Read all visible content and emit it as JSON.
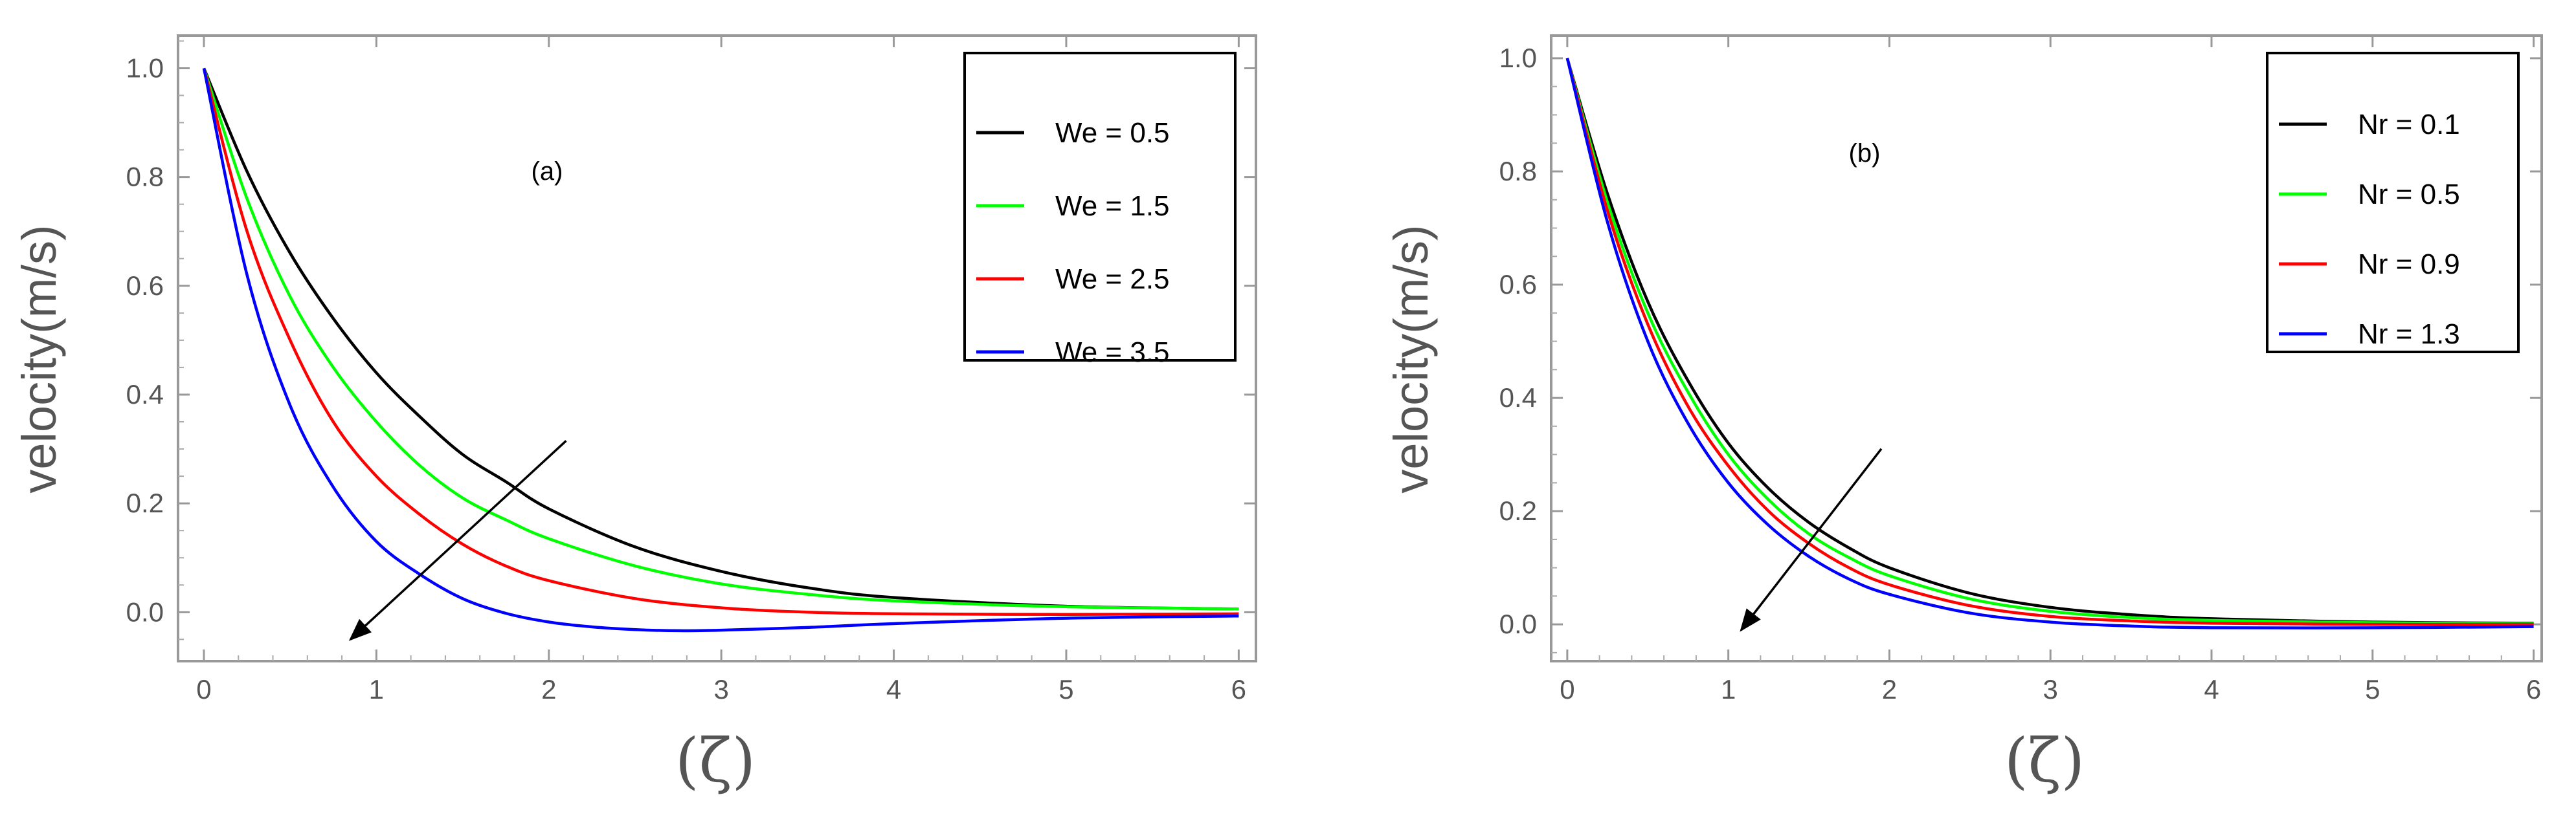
{
  "chart_data": [
    {
      "id": "a",
      "type": "line",
      "annotation": "(a)",
      "xlabel": "(ζ)",
      "ylabel": "velocity(m/s)",
      "xlim": [
        -0.15,
        6.1
      ],
      "ylim": [
        -0.09,
        1.06
      ],
      "xticks": [
        0,
        1,
        2,
        3,
        4,
        5,
        6
      ],
      "yticks": [
        0.0,
        0.2,
        0.4,
        0.6,
        0.8,
        1.0
      ],
      "ytick_labels": [
        "0.0",
        "0.2",
        "0.4",
        "0.6",
        "0.8",
        "1.0"
      ],
      "legend_position": "top-right",
      "series": [
        {
          "name": "We = 0.5",
          "color": "#000000",
          "x": [
            0,
            0.25,
            0.5,
            0.75,
            1,
            1.25,
            1.5,
            1.75,
            2,
            2.5,
            3,
            3.5,
            4,
            5,
            6
          ],
          "y": [
            1.0,
            0.81,
            0.66,
            0.54,
            0.44,
            0.36,
            0.29,
            0.24,
            0.19,
            0.12,
            0.075,
            0.045,
            0.027,
            0.011,
            0.006
          ]
        },
        {
          "name": "We = 1.5",
          "color": "#00ff00",
          "x": [
            0,
            0.25,
            0.5,
            0.75,
            1,
            1.25,
            1.5,
            1.75,
            2,
            2.5,
            3,
            3.5,
            4,
            5,
            6
          ],
          "y": [
            1.0,
            0.76,
            0.58,
            0.45,
            0.35,
            0.27,
            0.21,
            0.17,
            0.135,
            0.085,
            0.052,
            0.033,
            0.021,
            0.01,
            0.006
          ]
        },
        {
          "name": "We = 2.5",
          "color": "#ff0000",
          "x": [
            0,
            0.25,
            0.5,
            0.75,
            1,
            1.25,
            1.5,
            1.75,
            2,
            2.5,
            3,
            3.5,
            4,
            5,
            6
          ],
          "y": [
            1.0,
            0.7,
            0.5,
            0.35,
            0.25,
            0.18,
            0.125,
            0.085,
            0.058,
            0.025,
            0.008,
            0.0,
            -0.003,
            -0.004,
            -0.003
          ]
        },
        {
          "name": "We = 3.5",
          "color": "#0000ff",
          "x": [
            0,
            0.25,
            0.5,
            0.75,
            1,
            1.25,
            1.5,
            1.75,
            2,
            2.25,
            2.5,
            2.75,
            3,
            3.5,
            4,
            5,
            6
          ],
          "y": [
            1.0,
            0.62,
            0.38,
            0.23,
            0.13,
            0.07,
            0.025,
            -0.002,
            -0.018,
            -0.027,
            -0.032,
            -0.034,
            -0.033,
            -0.028,
            -0.021,
            -0.011,
            -0.007
          ]
        }
      ],
      "arrow": {
        "from": [
          2.1,
          0.315
        ],
        "to": [
          0.85,
          -0.05
        ]
      }
    },
    {
      "id": "b",
      "type": "line",
      "annotation": "(b)",
      "xlabel": "(ζ)",
      "ylabel": "velocity(m/s)",
      "xlim": [
        -0.1,
        6.05
      ],
      "ylim": [
        -0.065,
        1.04
      ],
      "xticks": [
        0,
        1,
        2,
        3,
        4,
        5,
        6
      ],
      "yticks": [
        0.0,
        0.2,
        0.4,
        0.6,
        0.8,
        1.0
      ],
      "ytick_labels": [
        "0.0",
        "0.2",
        "0.4",
        "0.6",
        "0.8",
        "1.0"
      ],
      "legend_position": "top-right",
      "series": [
        {
          "name": "Nr = 0.1",
          "color": "#000000",
          "x": [
            0,
            0.25,
            0.5,
            0.75,
            1,
            1.25,
            1.5,
            1.75,
            2,
            2.5,
            3,
            3.5,
            4,
            5,
            6
          ],
          "y": [
            1.0,
            0.76,
            0.57,
            0.43,
            0.32,
            0.24,
            0.18,
            0.135,
            0.1,
            0.055,
            0.03,
            0.017,
            0.01,
            0.004,
            0.002
          ]
        },
        {
          "name": "Nr = 0.5",
          "color": "#00ff00",
          "x": [
            0,
            0.25,
            0.5,
            0.75,
            1,
            1.25,
            1.5,
            1.75,
            2,
            2.5,
            3,
            3.5,
            4,
            5,
            6
          ],
          "y": [
            1.0,
            0.745,
            0.55,
            0.41,
            0.3,
            0.22,
            0.16,
            0.118,
            0.086,
            0.045,
            0.023,
            0.012,
            0.007,
            0.003,
            0.001
          ]
        },
        {
          "name": "Nr = 0.9",
          "color": "#ff0000",
          "x": [
            0,
            0.25,
            0.5,
            0.75,
            1,
            1.25,
            1.5,
            1.75,
            2,
            2.5,
            3,
            3.5,
            4,
            5,
            6
          ],
          "y": [
            1.0,
            0.73,
            0.53,
            0.385,
            0.28,
            0.2,
            0.143,
            0.1,
            0.07,
            0.033,
            0.014,
            0.006,
            0.002,
            0.0,
            0.0
          ]
        },
        {
          "name": "Nr = 1.3",
          "color": "#0000ff",
          "x": [
            0,
            0.25,
            0.5,
            0.75,
            1,
            1.25,
            1.5,
            1.75,
            2,
            2.5,
            3,
            3.5,
            4,
            5,
            6
          ],
          "y": [
            1.0,
            0.71,
            0.5,
            0.355,
            0.25,
            0.175,
            0.12,
            0.08,
            0.053,
            0.02,
            0.004,
            -0.003,
            -0.006,
            -0.006,
            -0.004
          ]
        }
      ],
      "arrow": {
        "from": [
          1.95,
          0.31
        ],
        "to": [
          1.08,
          -0.01
        ]
      }
    }
  ]
}
